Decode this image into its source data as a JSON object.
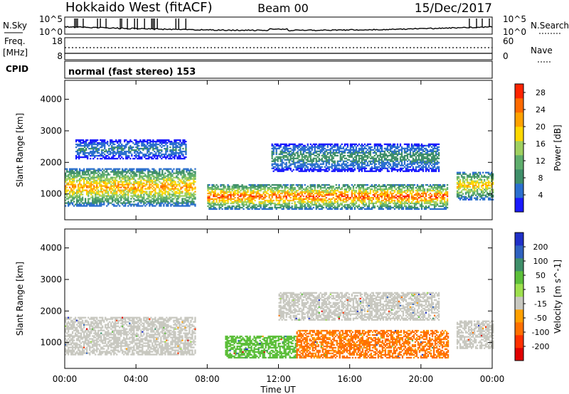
{
  "header": {
    "radar": "Hokkaido West (fitACF)",
    "beam": "Beam 00",
    "date": "15/Dec/2017"
  },
  "noise_panel": {
    "left_label": "N.Sky",
    "left_ticks": [
      "10^5",
      "10^0"
    ],
    "right_label": "N.Search",
    "right_ticks": [
      "10^5",
      "10^0"
    ]
  },
  "freq_panel": {
    "left_label_top": "Freq.",
    "left_label_bottom": "[MHz]",
    "left_ticks": [
      "18",
      "8"
    ],
    "right_label": "Nave",
    "right_ticks": [
      "60",
      "0"
    ]
  },
  "cpid": {
    "label": "CPID",
    "text": "normal (fast stereo) 153"
  },
  "chart_data": [
    {
      "type": "heatmap",
      "title": "",
      "quantity": "Power",
      "xlabel": "Time UT",
      "ylabel": "Slant Range [km]",
      "x_ticks": [
        "00:00",
        "04:00",
        "08:00",
        "12:00",
        "16:00",
        "20:00",
        "00:00"
      ],
      "x_range_hours": [
        0,
        24
      ],
      "y_ticks": [
        1000,
        2000,
        3000,
        4000
      ],
      "ylim": [
        180,
        4600
      ],
      "colorbar": {
        "label": "Power [dB]",
        "ticks": [
          4,
          8,
          12,
          16,
          20,
          24,
          28
        ],
        "range": [
          0,
          30
        ],
        "colors": [
          "#1a1aff",
          "#2b6fcf",
          "#3f8f6a",
          "#5fae6d",
          "#9fd060",
          "#ffd800",
          "#ffa200",
          "#ff6a00",
          "#ff2400"
        ]
      },
      "echo_regions": [
        {
          "t_start": 0.0,
          "t_end": 7.3,
          "range_lo": 600,
          "range_hi": 1800,
          "peak_db": 24
        },
        {
          "t_start": 0.6,
          "t_end": 6.8,
          "range_lo": 2100,
          "range_hi": 2700,
          "peak_db": 8
        },
        {
          "t_start": 8.0,
          "t_end": 21.5,
          "range_lo": 500,
          "range_hi": 1300,
          "peak_db": 28
        },
        {
          "t_start": 11.6,
          "t_end": 21.0,
          "range_lo": 1700,
          "range_hi": 2600,
          "peak_db": 10
        },
        {
          "t_start": 22.0,
          "t_end": 24.0,
          "range_lo": 800,
          "range_hi": 1700,
          "peak_db": 22
        }
      ]
    },
    {
      "type": "heatmap",
      "title": "",
      "quantity": "Velocity",
      "xlabel": "Time UT",
      "ylabel": "Slant Range [km]",
      "x_ticks": [
        "00:00",
        "04:00",
        "08:00",
        "12:00",
        "16:00",
        "20:00",
        "00:00"
      ],
      "x_range_hours": [
        0,
        24
      ],
      "y_ticks": [
        1000,
        2000,
        3000,
        4000
      ],
      "ylim": [
        180,
        4600
      ],
      "colorbar": {
        "label": "Velocity [m s^-1]",
        "ticks": [
          "200",
          "100",
          "50",
          "15",
          "-15",
          "-50",
          "-100",
          "-200"
        ],
        "colors": [
          "#2030c8",
          "#2f62c0",
          "#3f8f6a",
          "#5cbf3a",
          "#9ee04e",
          "#c8c8c0",
          "#ffa000",
          "#ff7000",
          "#ff3000",
          "#e00000"
        ]
      },
      "echo_regions": [
        {
          "t_start": 0.0,
          "t_end": 7.3,
          "range_lo": 600,
          "range_hi": 1800,
          "velocity": 0
        },
        {
          "t_start": 9.0,
          "t_end": 13.0,
          "range_lo": 500,
          "range_hi": 1200,
          "velocity": 60
        },
        {
          "t_start": 13.0,
          "t_end": 21.5,
          "range_lo": 500,
          "range_hi": 1400,
          "velocity": -60
        },
        {
          "t_start": 12.0,
          "t_end": 21.0,
          "range_lo": 1700,
          "range_hi": 2600,
          "velocity": 0
        },
        {
          "t_start": 22.0,
          "t_end": 24.0,
          "range_lo": 800,
          "range_hi": 1700,
          "velocity": 0
        }
      ]
    }
  ]
}
